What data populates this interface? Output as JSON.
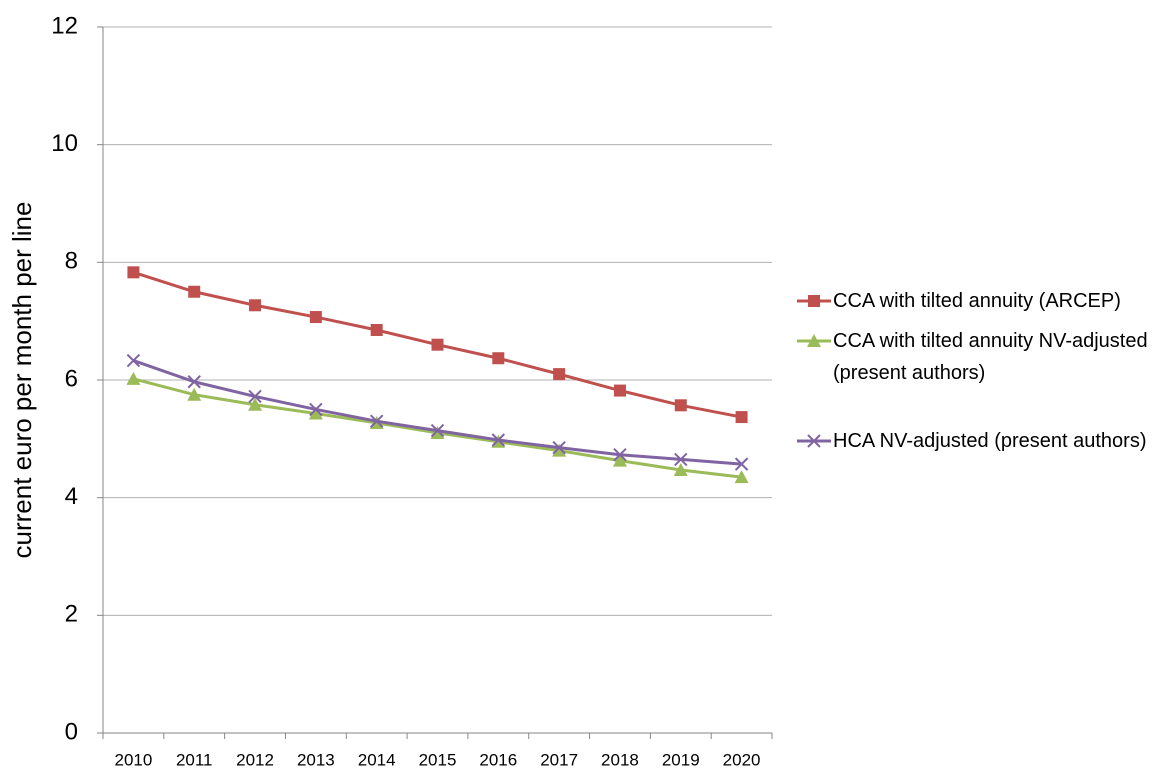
{
  "chart_data": {
    "type": "line",
    "y_label": "current euro per month per line",
    "categories": [
      "2010",
      "2011",
      "2012",
      "2013",
      "2014",
      "2015",
      "2016",
      "2017",
      "2018",
      "2019",
      "2020"
    ],
    "series": [
      {
        "name": "CCA with tilted annuity (ARCEP)",
        "color": "#c0504d",
        "marker": "square",
        "values": [
          7.83,
          7.5,
          7.27,
          7.07,
          6.85,
          6.6,
          6.37,
          6.1,
          5.82,
          5.57,
          5.37
        ]
      },
      {
        "name": "CCA with tilted annuity NV-adjusted (present authors)",
        "color": "#9bbb59",
        "marker": "triangle",
        "values": [
          6.02,
          5.75,
          5.58,
          5.43,
          5.27,
          5.1,
          4.95,
          4.8,
          4.63,
          4.47,
          4.35
        ]
      },
      {
        "name": "HCA NV-adjusted (present authors)",
        "color": "#8064a2",
        "marker": "x",
        "values": [
          6.33,
          5.97,
          5.72,
          5.5,
          5.3,
          5.14,
          4.98,
          4.85,
          4.73,
          4.65,
          4.57
        ]
      }
    ],
    "ylim": [
      0,
      12
    ],
    "yticks": [
      0,
      2,
      4,
      6,
      8,
      10,
      12
    ],
    "grid": true
  }
}
